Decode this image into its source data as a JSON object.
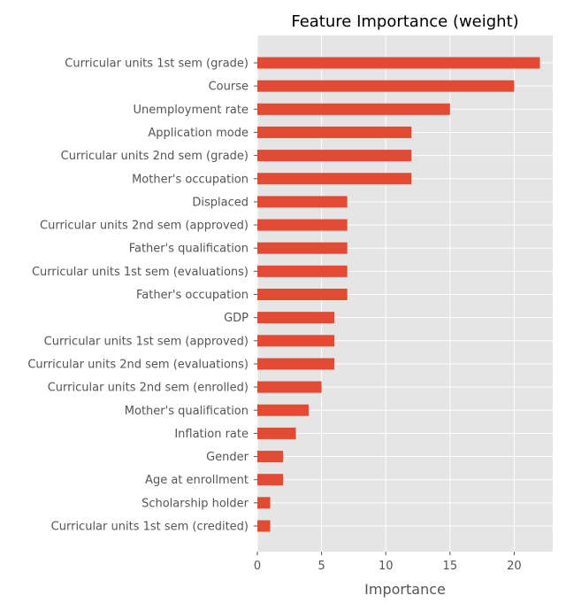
{
  "chart_data": {
    "type": "bar",
    "orientation": "horizontal",
    "title": "Feature Importance (weight)",
    "xlabel": "Importance",
    "ylabel": "",
    "xlim": [
      0,
      23
    ],
    "xticks": [
      0,
      5,
      10,
      15,
      20
    ],
    "grid": true,
    "categories": [
      "Curricular units 1st sem (grade)",
      "Course",
      "Unemployment rate",
      "Application mode",
      "Curricular units 2nd sem (grade)",
      "Mother's occupation",
      "Displaced",
      "Curricular units 2nd sem (approved)",
      "Father's qualification",
      "Curricular units 1st sem (evaluations)",
      "Father's occupation",
      "GDP",
      "Curricular units 1st sem (approved)",
      "Curricular units 2nd sem (evaluations)",
      "Curricular units 2nd sem (enrolled)",
      "Mother's qualification",
      "Inflation rate",
      "Gender",
      "Age at enrollment",
      "Scholarship holder",
      "Curricular units 1st sem (credited)"
    ],
    "values": [
      22,
      20,
      15,
      12,
      12,
      12,
      7,
      7,
      7,
      7,
      7,
      6,
      6,
      6,
      5,
      4,
      3,
      2,
      2,
      1,
      1
    ],
    "bar_color": "#E24A33",
    "background_color": "#E5E5E5",
    "grid_color": "#FFFFFF"
  }
}
